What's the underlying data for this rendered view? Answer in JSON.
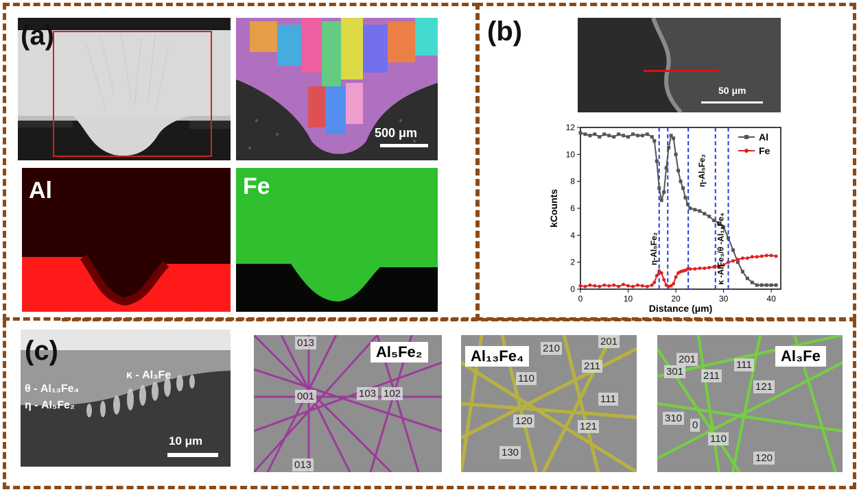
{
  "panels": {
    "a": {
      "label": "(a)",
      "scale_bar": "500 μm",
      "maps": [
        "Al",
        "Fe"
      ]
    },
    "b": {
      "label": "(b)",
      "scale_bar": "50 μm"
    },
    "c": {
      "label": "(c)",
      "scale_bar": "10 μm",
      "phases": [
        "θ - Al₁₃Fe₄",
        "η - Al₅Fe₂",
        "κ - Al₃Fe"
      ],
      "patterns": [
        {
          "title": "Al₅Fe₂",
          "indices": [
            "013",
            "001",
            "103",
            "102",
            "013"
          ]
        },
        {
          "title": "Al₁₃Fe₄",
          "indices": [
            "210",
            "201",
            "211",
            "110",
            "111",
            "120",
            "121",
            "130"
          ]
        },
        {
          "title": "Al₃Fe",
          "indices": [
            "201",
            "301",
            "211",
            "111",
            "121",
            "310",
            "0",
            "110",
            "120"
          ]
        }
      ]
    }
  },
  "chart_data": {
    "type": "line",
    "xlabel": "Distance (μm)",
    "ylabel": "kCounts",
    "xlim": [
      0,
      42
    ],
    "ylim": [
      0,
      12
    ],
    "xticks": [
      "0",
      "10",
      "20",
      "30",
      "40"
    ],
    "yticks": [
      "0",
      "2",
      "4",
      "6",
      "8",
      "10",
      "12"
    ],
    "legend_position": "top-right",
    "series": [
      {
        "name": "Al",
        "color": "#555555",
        "x": [
          0,
          1,
          2,
          3,
          4,
          5,
          6,
          7,
          8,
          9,
          10,
          11,
          12,
          13,
          14,
          15,
          15.5,
          16,
          16.5,
          17,
          17.5,
          18,
          18.5,
          19,
          19.5,
          20,
          20.5,
          21,
          21.5,
          22,
          22.5,
          23,
          24,
          25,
          26,
          27,
          28,
          29,
          30,
          31,
          32,
          33,
          34,
          35,
          36,
          37,
          38,
          39,
          40,
          41
        ],
        "y": [
          11.6,
          11.5,
          11.4,
          11.5,
          11.3,
          11.5,
          11.4,
          11.3,
          11.5,
          11.4,
          11.3,
          11.5,
          11.4,
          11.4,
          11.5,
          11.3,
          11.0,
          9.5,
          7.5,
          6.6,
          7.2,
          9.0,
          10.5,
          11.4,
          11.2,
          10.0,
          8.8,
          8.0,
          7.5,
          6.8,
          6.3,
          6.0,
          5.9,
          5.8,
          5.6,
          5.4,
          5.1,
          4.9,
          4.6,
          3.8,
          2.9,
          2.0,
          1.3,
          0.8,
          0.5,
          0.3,
          0.3,
          0.3,
          0.3,
          0.3
        ]
      },
      {
        "name": "Fe",
        "color": "#e02020",
        "x": [
          0,
          1,
          2,
          3,
          4,
          5,
          6,
          7,
          8,
          9,
          10,
          11,
          12,
          13,
          14,
          15,
          15.5,
          16,
          16.5,
          17,
          17.5,
          18,
          18.5,
          19,
          19.5,
          20,
          20.5,
          21,
          21.5,
          22,
          22.5,
          23,
          24,
          25,
          26,
          27,
          28,
          29,
          30,
          31,
          32,
          33,
          34,
          35,
          36,
          37,
          38,
          39,
          40,
          41
        ],
        "y": [
          0.25,
          0.2,
          0.3,
          0.25,
          0.2,
          0.3,
          0.25,
          0.3,
          0.2,
          0.35,
          0.25,
          0.2,
          0.3,
          0.25,
          0.2,
          0.3,
          0.5,
          1.0,
          1.35,
          1.2,
          0.7,
          0.3,
          0.2,
          0.25,
          0.4,
          0.9,
          1.2,
          1.3,
          1.35,
          1.4,
          1.5,
          1.5,
          1.5,
          1.55,
          1.55,
          1.6,
          1.65,
          1.7,
          1.8,
          2.0,
          2.1,
          2.2,
          2.3,
          2.3,
          2.4,
          2.4,
          2.45,
          2.5,
          2.5,
          2.45
        ]
      }
    ],
    "annotations": [
      "η-Al₅Fe₂",
      "η-Al₅Fe₂",
      "κ -AlFe₃/θ -Al₁₃Fe₄"
    ],
    "phase_boundaries": [
      16.5,
      18.3,
      22.6,
      28.3,
      31.0
    ]
  }
}
